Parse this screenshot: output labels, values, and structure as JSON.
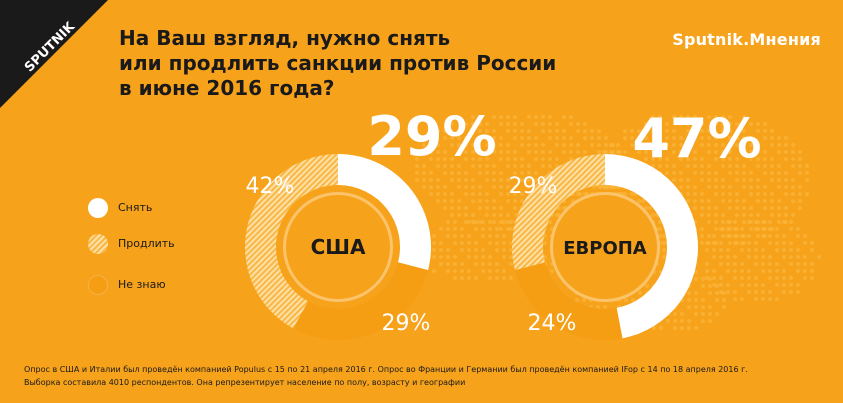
{
  "brand": {
    "logo_text": "SPUTNIK",
    "right_text": "Sputnik.Мнения"
  },
  "title_lines": [
    "На Ваш взгляд, нужно снять",
    "или продлить санкции против России",
    "в июне 2016 года?"
  ],
  "legend": [
    {
      "key": "remove",
      "label": "Снять"
    },
    {
      "key": "extend",
      "label": "Продлить"
    },
    {
      "key": "unknown",
      "label": "Не знаю"
    }
  ],
  "colors": {
    "background": "#f7a21b",
    "remove": "#ffffff",
    "extend_light": "#fde0a8",
    "extend_dark": "#f9b743",
    "unknown": "#f59e14",
    "inner_circle": "#f7a21b",
    "inner_ring": "#fbc36a",
    "logo_bg": "#1a1a1a"
  },
  "chart_data": [
    {
      "type": "pie",
      "label": "США",
      "slices": [
        {
          "key": "remove",
          "name": "Снять",
          "value": 29,
          "label": "29%"
        },
        {
          "key": "unknown",
          "name": "Не знаю",
          "value": 29,
          "label": "29%"
        },
        {
          "key": "extend",
          "name": "Продлить",
          "value": 42,
          "label": "42%"
        }
      ]
    },
    {
      "type": "pie",
      "label": "ЕВРОПА",
      "slices": [
        {
          "key": "remove",
          "name": "Снять",
          "value": 47,
          "label": "47%"
        },
        {
          "key": "unknown",
          "name": "Не знаю",
          "value": 24,
          "label": "24%"
        },
        {
          "key": "extend",
          "name": "Продлить",
          "value": 29,
          "label": "29%"
        }
      ]
    }
  ],
  "footnote_lines": [
    "Опрос в США и Италии был проведён компанией Populus с 15 по 21  апреля 2016 г. Опрос во Франции и Германии был проведён компанией IFop с 14 по 18 апреля 2016 г.",
    "Выборка составила 4010 респондентов. Она репрезентирует население по полу, возрасту и географии"
  ]
}
